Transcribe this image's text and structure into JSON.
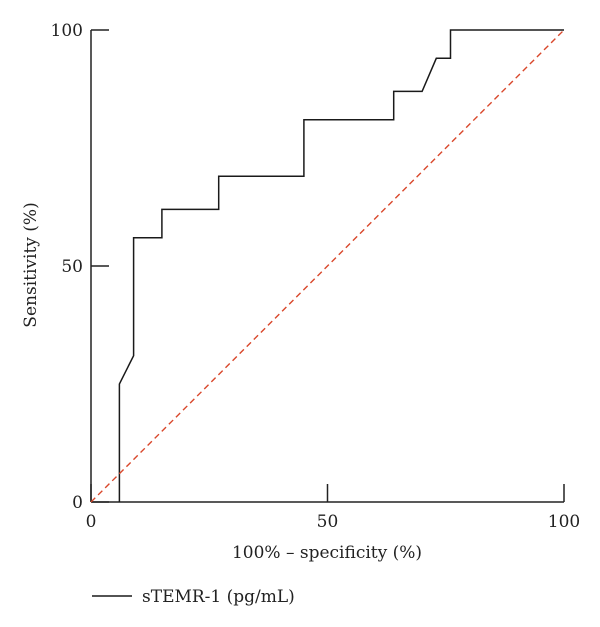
{
  "chart_data": {
    "type": "line",
    "title": "",
    "xlabel": "100% – specificity (%)",
    "ylabel": "Sensitivity (%)",
    "xlim": [
      0,
      100
    ],
    "ylim": [
      0,
      100
    ],
    "x_ticks": [
      0,
      50,
      100
    ],
    "y_ticks": [
      0,
      50,
      100
    ],
    "x_tick_labels": [
      "0",
      "50",
      "100"
    ],
    "y_tick_labels": [
      "0",
      "50",
      "100"
    ],
    "grid": false,
    "legend_position": "bottom-left",
    "series": [
      {
        "name": "sTEMR-1 (pg/mL)",
        "color": "#1a1a1a",
        "style": "solid",
        "x": [
          6,
          6,
          9,
          9,
          15,
          15,
          27,
          27,
          45,
          45,
          64,
          64,
          70,
          73,
          76,
          76,
          100
        ],
        "y": [
          0,
          25,
          31,
          56,
          56,
          62,
          62,
          69,
          69,
          81,
          81,
          87,
          87,
          94,
          94,
          100,
          100
        ]
      },
      {
        "color": "#d9472b",
        "style": "dashed",
        "x": [
          0,
          100
        ],
        "y": [
          0,
          100
        ]
      }
    ]
  }
}
